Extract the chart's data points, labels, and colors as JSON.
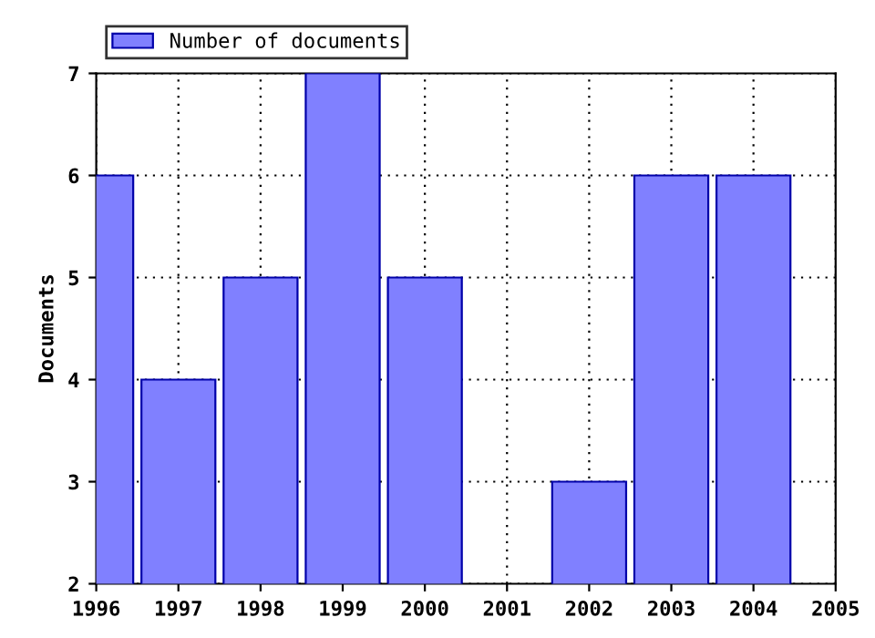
{
  "chart_data": {
    "type": "bar",
    "ylabel": "Documents",
    "x": [
      1996,
      1997,
      1998,
      1999,
      2000,
      2001,
      2002,
      2003,
      2004
    ],
    "series": [
      {
        "name": "Number of documents",
        "color": "#8080ff",
        "values": [
          6,
          4,
          5,
          7,
          5,
          null,
          3,
          6,
          6
        ]
      }
    ],
    "xlim": [
      1996,
      2005
    ],
    "xticks": [
      1996,
      1997,
      1998,
      1999,
      2000,
      2001,
      2002,
      2003,
      2004,
      2005
    ],
    "ylim": [
      2,
      7
    ],
    "yticks": [
      2,
      3,
      4,
      5,
      6,
      7
    ],
    "grid": true,
    "legend": "top left"
  }
}
